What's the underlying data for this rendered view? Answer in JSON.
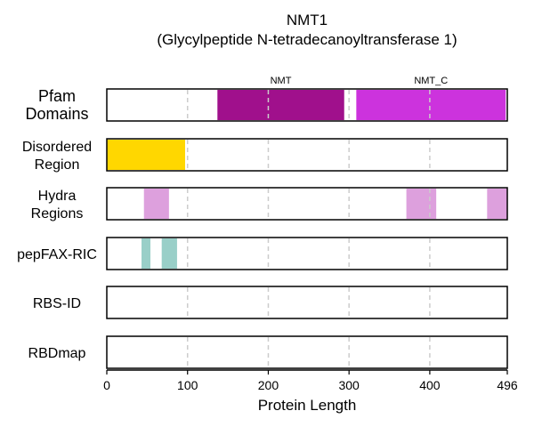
{
  "chart_data": {
    "type": "protein-track",
    "title": "NMT1",
    "subtitle": "(Glycylpeptide N-tetradecanoyltransferase 1)",
    "xlabel": "Protein Length",
    "xlim": [
      0,
      496
    ],
    "xticks": [
      0,
      100,
      200,
      300,
      400,
      496
    ],
    "gridlines": [
      100,
      200,
      300,
      400
    ],
    "tracks": [
      {
        "name": "Pfam Domains",
        "label_lines": [
          "Pfam",
          "Domains"
        ],
        "segments": [
          {
            "start": 137,
            "end": 294,
            "color": "#a0108c",
            "label": "NMT"
          },
          {
            "start": 309,
            "end": 494,
            "color": "#cc33dd",
            "label": "NMT_C"
          }
        ]
      },
      {
        "name": "Disordered Region",
        "label_lines": [
          "Disordered",
          "Region"
        ],
        "segments": [
          {
            "start": 0,
            "end": 97,
            "color": "#ffd700"
          }
        ]
      },
      {
        "name": "Hydra Regions",
        "label_lines": [
          "Hydra",
          "Regions"
        ],
        "segments": [
          {
            "start": 46,
            "end": 77,
            "color": "#dda0dd"
          },
          {
            "start": 371,
            "end": 408,
            "color": "#dda0dd"
          },
          {
            "start": 471,
            "end": 496,
            "color": "#dda0dd"
          }
        ]
      },
      {
        "name": "pepFAX-RIC",
        "label_lines": [
          "pepFAX-RIC"
        ],
        "segments": [
          {
            "start": 43,
            "end": 54,
            "color": "#99cfc8"
          },
          {
            "start": 68,
            "end": 87,
            "color": "#99cfc8"
          }
        ]
      },
      {
        "name": "RBS-ID",
        "label_lines": [
          "RBS-ID"
        ],
        "segments": []
      },
      {
        "name": "RBDmap",
        "label_lines": [
          "RBDmap"
        ],
        "segments": []
      }
    ]
  }
}
